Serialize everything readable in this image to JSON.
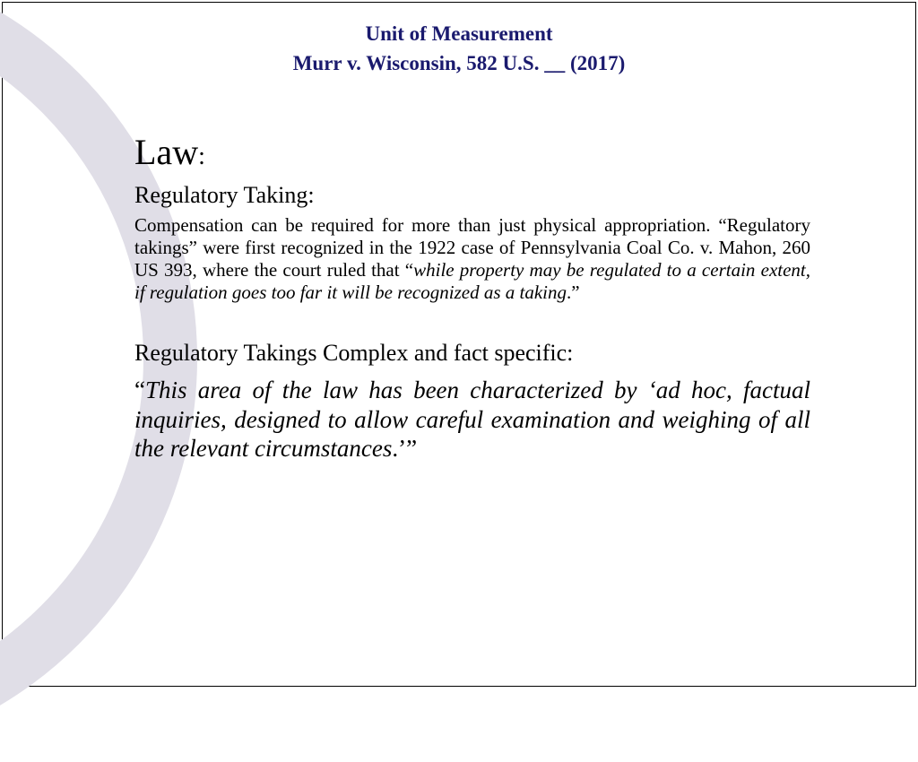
{
  "header": {
    "title": "Unit of Measurement",
    "subtitle": "Murr v. Wisconsin, 582 U.S. __ (2017)"
  },
  "content": {
    "main_heading": "Law",
    "section1_heading": "Regulatory Taking:",
    "section1_text_part1": "Compensation can be required for more than just physical appropriation. “Regulatory takings” were first recognized in the 1922 case of Pennsylvania Coal Co. v. Mahon, 260 US 393, where the court ruled that “",
    "section1_text_italic": "while property may be regulated to a certain extent, if regulation goes too far it will be recognized as a taking",
    "section1_text_part2": ".”",
    "section2_heading": "Regulatory Takings Complex and fact specific:",
    "section2_quote_open": "“",
    "section2_quote_text": "This area of the law has been characterized by ‘ad hoc, factual inquiries, designed to allow careful examination and weighing of all the relevant circumstances",
    "section2_quote_close": ".’”"
  },
  "styles": {
    "title_color": "#1a1a6e",
    "body_color": "#000000",
    "background_color": "#ffffff",
    "arc_color": "#e0dee7",
    "border_color": "#000000",
    "title_fontsize": 23,
    "heading_fontsize": 40,
    "subheading_fontsize": 26,
    "body_fontsize": 21,
    "quote_fontsize": 27
  }
}
